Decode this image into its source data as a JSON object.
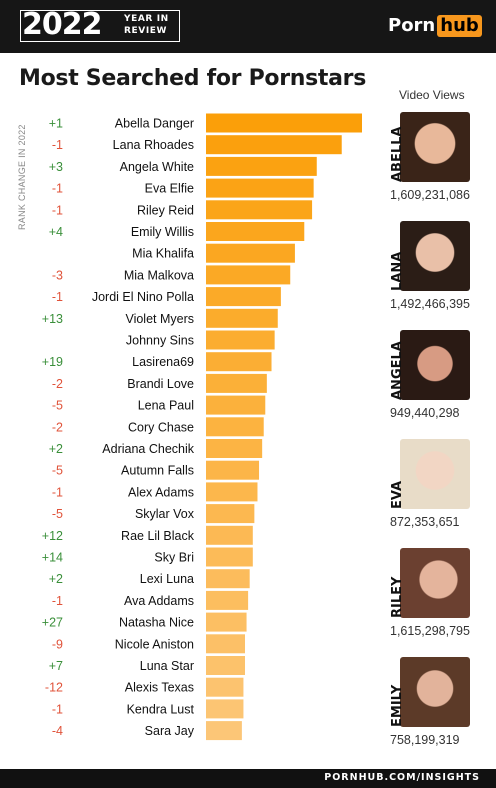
{
  "header": {
    "year": "2022",
    "year_in_review": "YEAR IN REVIEW",
    "logo_part1": "Porn",
    "logo_part2": "hub"
  },
  "side_label": "RANK CHANGE IN 2022",
  "video_views_label": "Video Views",
  "footer": "PORNHUB.COM/INSIGHTS",
  "colors": {
    "bar_top": "#fb9f09",
    "bar_bottom": "#fcc677",
    "positive": "#3a8f3a",
    "negative": "#e0533a",
    "header": "#161616"
  },
  "chart_data": {
    "type": "bar",
    "orientation": "horizontal",
    "title": "Most Searched for Pornstars",
    "categories": [
      "Abella Danger",
      "Lana Rhoades",
      "Angela White",
      "Eva Elfie",
      "Riley Reid",
      "Emily Willis",
      "Mia Khalifa",
      "Mia Malkova",
      "Jordi El Nino Polla",
      "Violet Myers",
      "Johnny Sins",
      "Lasirena69",
      "Brandi Love",
      "Lena Paul",
      "Cory Chase",
      "Adriana Chechik",
      "Autumn Falls",
      "Alex Adams",
      "Skylar Vox",
      "Rae Lil Black",
      "Sky Bri",
      "Lexi Luna",
      "Ava Addams",
      "Natasha Nice",
      "Nicole Aniston",
      "Luna Star",
      "Alexis Texas",
      "Kendra Lust",
      "Sara Jay"
    ],
    "values": [
      100,
      87,
      71,
      69,
      68,
      63,
      57,
      54,
      48,
      46,
      44,
      42,
      39,
      38,
      37,
      36,
      34,
      33,
      31,
      30,
      30,
      28,
      27,
      26,
      25,
      25,
      24,
      24,
      23
    ],
    "rank_change": [
      "+1",
      "-1",
      "+3",
      "-1",
      "-1",
      "+4",
      "",
      "-3",
      "-1",
      "+13",
      "",
      "+19",
      "-2",
      "-5",
      "-2",
      "+2",
      "-5",
      "-1",
      "-5",
      "+12",
      "+14",
      "+2",
      "-1",
      "+27",
      "-9",
      "+7",
      "-12",
      "-1",
      "-4"
    ],
    "featured": [
      {
        "name": "ABELLA",
        "views": "1,609,231,086"
      },
      {
        "name": "LANA",
        "views": "1,492,466,395"
      },
      {
        "name": "ANGELA",
        "views": "949,440,298"
      },
      {
        "name": "EVA",
        "views": "872,353,651"
      },
      {
        "name": "RILEY",
        "views": "1,615,298,795"
      },
      {
        "name": "EMILY",
        "views": "758,199,319"
      }
    ]
  }
}
